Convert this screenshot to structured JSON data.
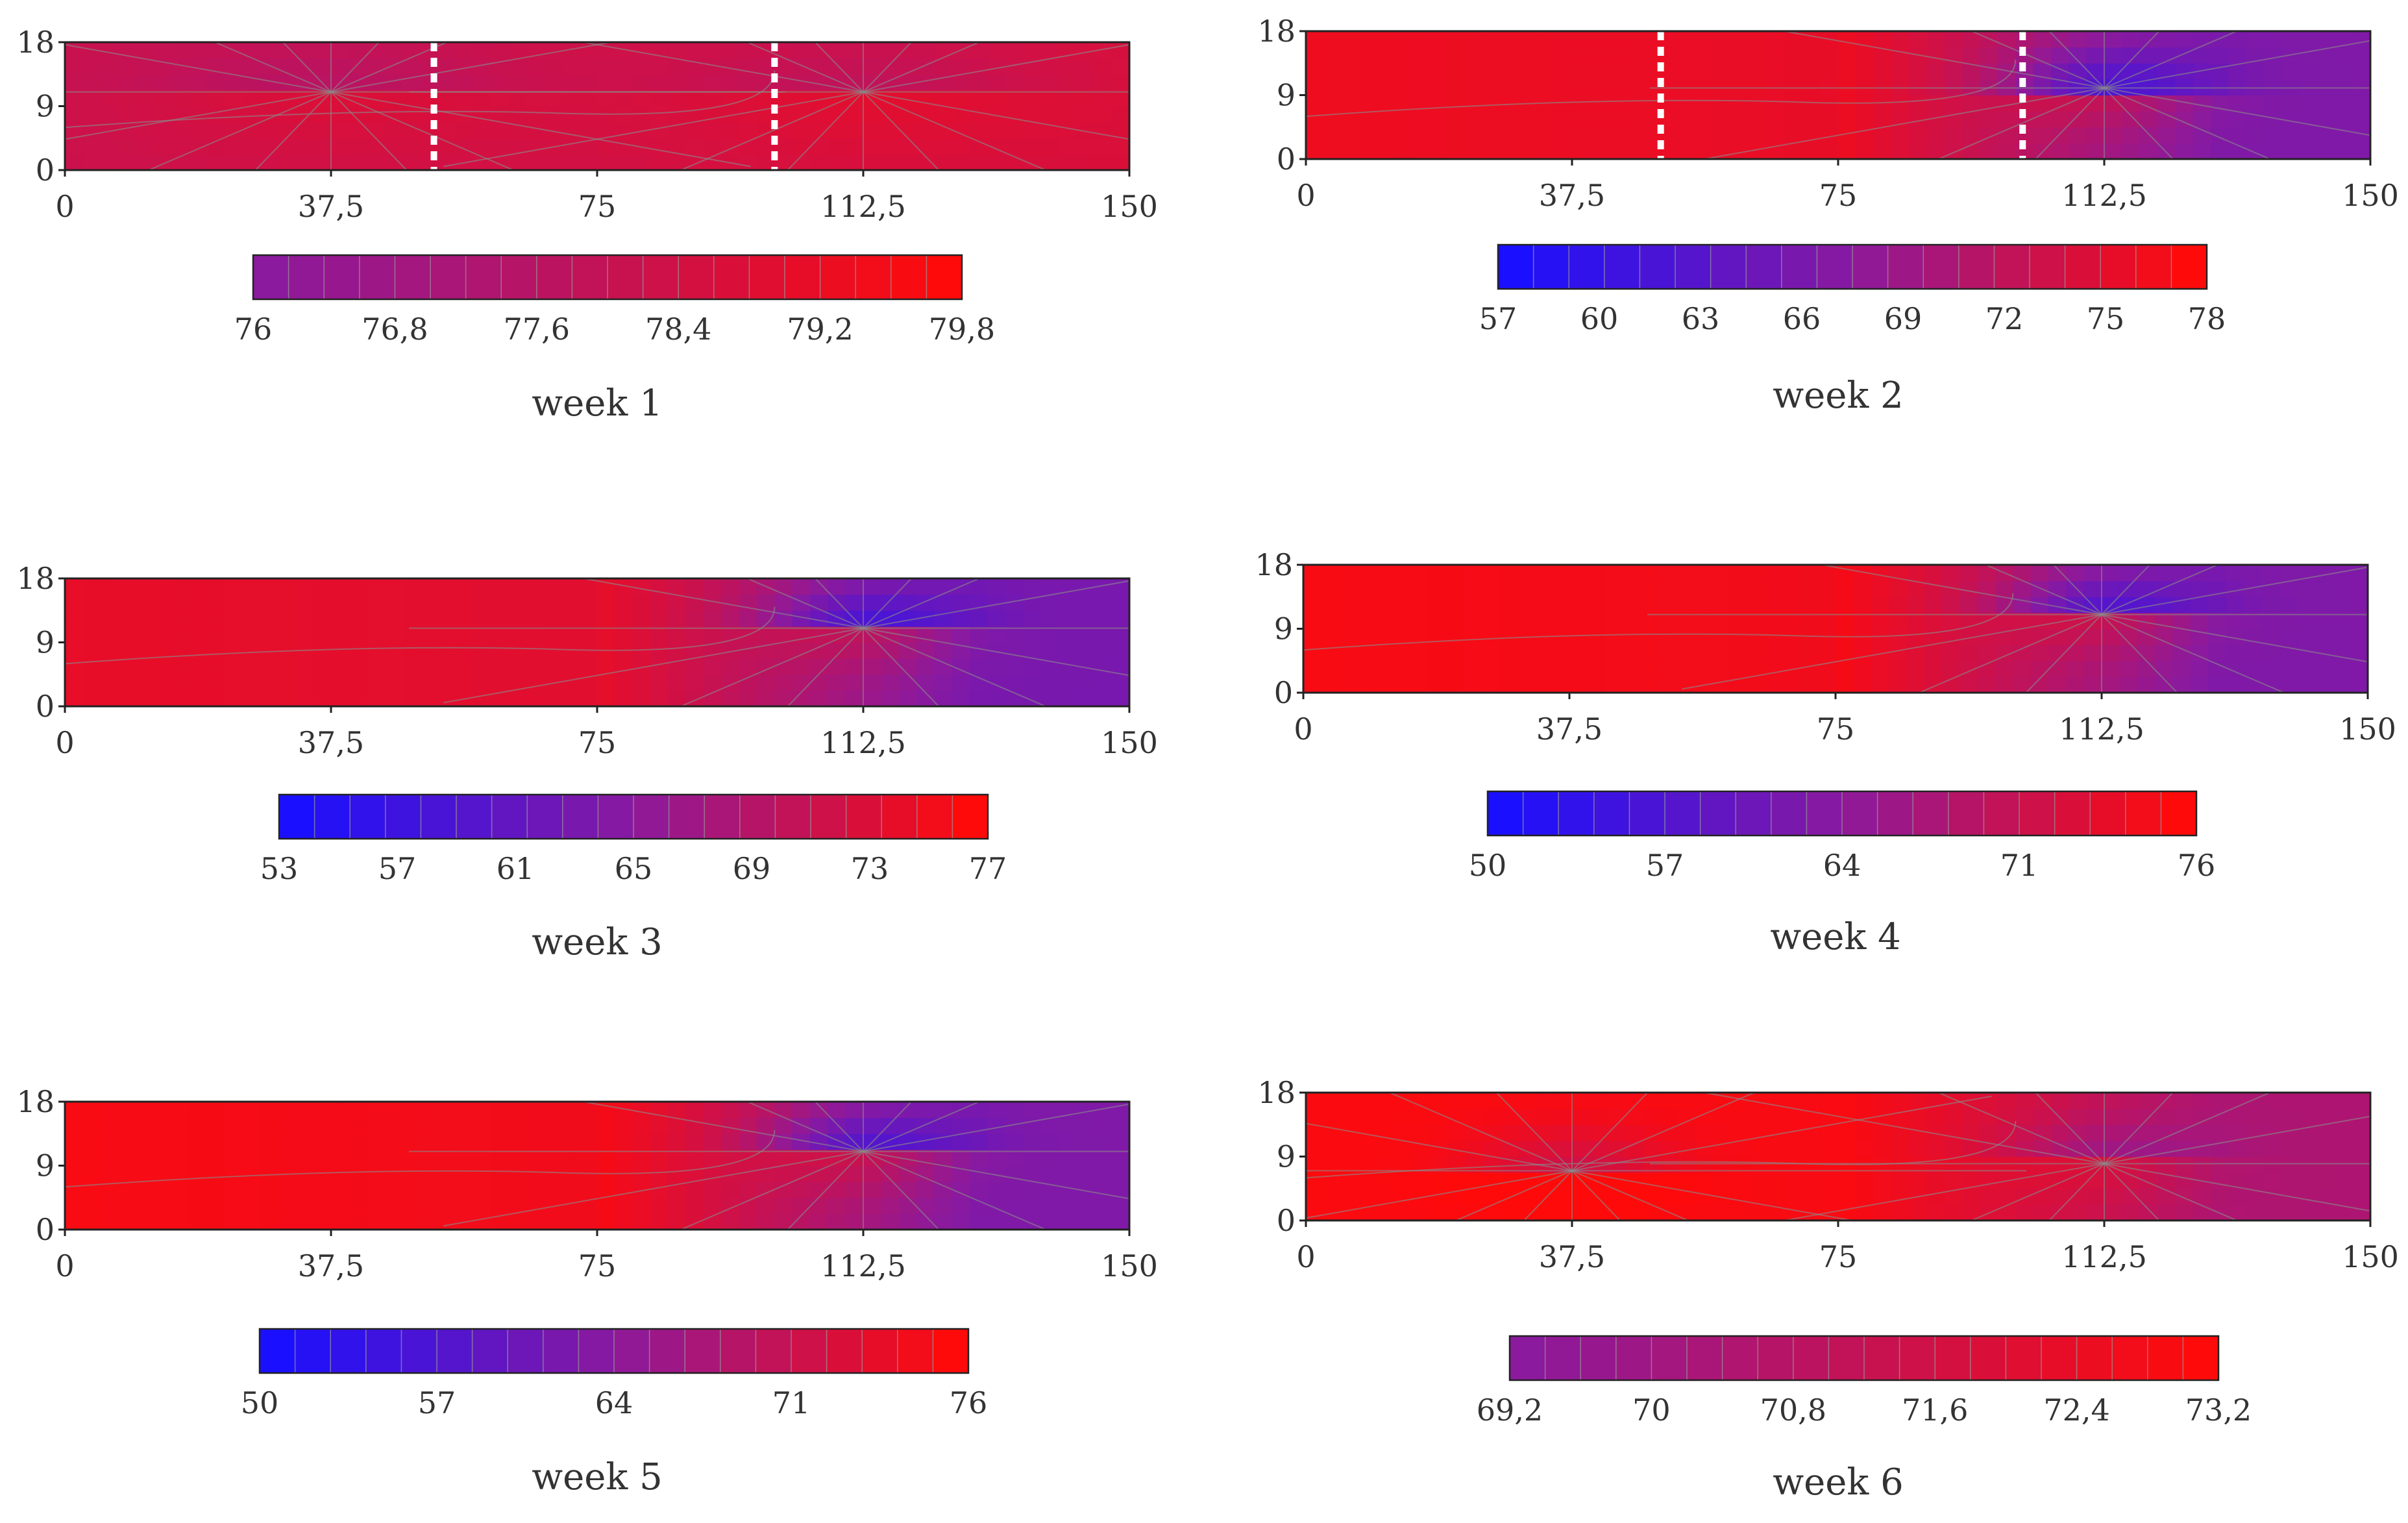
{
  "chart_data": [
    {
      "type": "heatmap",
      "title": "week 1",
      "x_ticks": [
        "0",
        "37,5",
        "75",
        "112,5",
        "150"
      ],
      "y_ticks": [
        "0",
        "9",
        "18"
      ],
      "xlim": [
        0,
        150
      ],
      "ylim": [
        0,
        18
      ],
      "colorbar": {
        "min": 76,
        "max": 79.8,
        "tick_labels": [
          "76",
          "76,8",
          "77,6",
          "78,4",
          "79,2",
          "79,8"
        ]
      },
      "divider_x": [
        52,
        100
      ],
      "centers": [
        {
          "x": 37.5,
          "y": 11
        },
        {
          "x": 112.5,
          "y": 11
        }
      ],
      "color_scale": [
        "#8b1a9e",
        "#ff0a0a"
      ],
      "field": {
        "base": 0.55,
        "left_end": 0.5,
        "right_end": 0.7
      }
    },
    {
      "type": "heatmap",
      "title": "week 2",
      "x_ticks": [
        "0",
        "37,5",
        "75",
        "112,5",
        "150"
      ],
      "y_ticks": [
        "0",
        "9",
        "18"
      ],
      "xlim": [
        0,
        150
      ],
      "ylim": [
        0,
        18
      ],
      "colorbar": {
        "min": 57,
        "max": 78,
        "tick_labels": [
          "57",
          "60",
          "63",
          "66",
          "69",
          "72",
          "75",
          "78"
        ]
      },
      "divider_x": [
        50,
        101
      ],
      "centers": [
        {
          "x": 112.5,
          "y": 10
        }
      ],
      "color_scale": [
        "#1a10ff",
        "#8b1a9e",
        "#ff0a0a"
      ],
      "field": {
        "plateau_end": 75,
        "plateau_value": 0.93,
        "right_value": 0.45
      }
    },
    {
      "type": "heatmap",
      "title": "week 3",
      "x_ticks": [
        "0",
        "37,5",
        "75",
        "112,5",
        "150"
      ],
      "y_ticks": [
        "0",
        "9",
        "18"
      ],
      "xlim": [
        0,
        150
      ],
      "ylim": [
        0,
        18
      ],
      "colorbar": {
        "min": 53,
        "max": 77,
        "tick_labels": [
          "53",
          "57",
          "61",
          "65",
          "69",
          "73",
          "77"
        ]
      },
      "divider_x": [],
      "centers": [
        {
          "x": 112.5,
          "y": 11
        }
      ],
      "color_scale": [
        "#1a10ff",
        "#8b1a9e",
        "#ff0a0a"
      ],
      "field": {
        "plateau_end": 75,
        "plateau_value": 0.9,
        "right_value": 0.42
      }
    },
    {
      "type": "heatmap",
      "title": "week 4",
      "x_ticks": [
        "0",
        "37,5",
        "75",
        "112,5",
        "150"
      ],
      "y_ticks": [
        "0",
        "9",
        "18"
      ],
      "xlim": [
        0,
        150
      ],
      "ylim": [
        0,
        18
      ],
      "colorbar": {
        "min": 50,
        "max": 76,
        "tick_labels": [
          "50",
          "57",
          "64",
          "71",
          "76"
        ]
      },
      "divider_x": [],
      "centers": [
        {
          "x": 112.5,
          "y": 11
        }
      ],
      "color_scale": [
        "#1a10ff",
        "#8b1a9e",
        "#ff0a0a"
      ],
      "field": {
        "plateau_end": 75,
        "plateau_value": 0.97,
        "right_value": 0.45
      }
    },
    {
      "type": "heatmap",
      "title": "week 5",
      "x_ticks": [
        "0",
        "37,5",
        "75",
        "112,5",
        "150"
      ],
      "y_ticks": [
        "0",
        "9",
        "18"
      ],
      "xlim": [
        0,
        150
      ],
      "ylim": [
        0,
        18
      ],
      "colorbar": {
        "min": 50,
        "max": 76,
        "tick_labels": [
          "50",
          "57",
          "64",
          "71",
          "76"
        ]
      },
      "divider_x": [],
      "centers": [
        {
          "x": 112.5,
          "y": 11
        }
      ],
      "color_scale": [
        "#1a10ff",
        "#8b1a9e",
        "#ff0a0a"
      ],
      "field": {
        "plateau_end": 75,
        "plateau_value": 0.97,
        "right_value": 0.45
      }
    },
    {
      "type": "heatmap",
      "title": "week 6",
      "x_ticks": [
        "0",
        "37,5",
        "75",
        "112,5",
        "150"
      ],
      "y_ticks": [
        "0",
        "9",
        "18"
      ],
      "xlim": [
        0,
        150
      ],
      "ylim": [
        0,
        18
      ],
      "colorbar": {
        "min": 69.2,
        "max": 73.2,
        "tick_labels": [
          "69,2",
          "70",
          "70,8",
          "71,6",
          "72,4",
          "73,2"
        ]
      },
      "divider_x": [],
      "centers": [
        {
          "x": 37.5,
          "y": 7
        },
        {
          "x": 112.5,
          "y": 8
        }
      ],
      "color_scale": [
        "#8b1a9e",
        "#ff0a0a"
      ],
      "field": {
        "plateau_end": 75,
        "plateau_value": 0.97,
        "right_value": 0.3
      }
    }
  ]
}
